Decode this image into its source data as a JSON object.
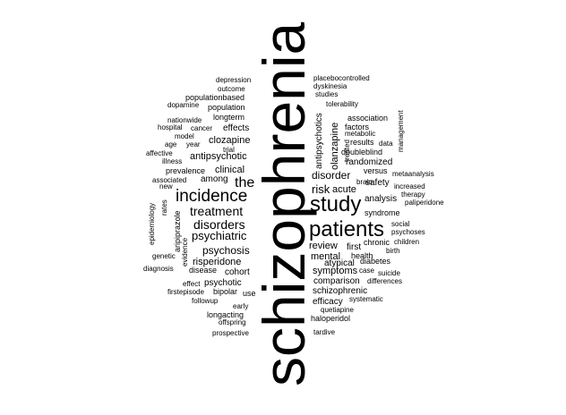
{
  "word_cloud": {
    "text_color": "#000000",
    "background_color": "#ffffff",
    "words": [
      "schizophrenia",
      "patients",
      "study",
      "incidence",
      "disorders",
      "treatment",
      "psychiatric",
      "the",
      "psychosis",
      "risk",
      "disorder",
      "review",
      "antipsychotic",
      "clinical",
      "clozapine",
      "among",
      "risperidone",
      "mental",
      "first",
      "acute",
      "antipsychotics",
      "olanzapine",
      "symptoms",
      "schizophrenic",
      "comparison",
      "efficacy",
      "atypical",
      "randomized",
      "safety",
      "analysis",
      "syndrome",
      "chronic",
      "health",
      "diabetes",
      "cohort",
      "psychotic",
      "bipolar",
      "effects",
      "longterm",
      "population",
      "populationbased",
      "outcome",
      "depression",
      "placebocontrolled",
      "dyskinesia",
      "studies",
      "tolerability",
      "association",
      "factors",
      "metabolic",
      "results",
      "data",
      "management",
      "versus",
      "brain",
      "treated",
      "doubleblind",
      "metaanalysis",
      "increased",
      "therapy",
      "paliperidone",
      "social",
      "psychoses",
      "children",
      "birth",
      "suicide",
      "differences",
      "systematic",
      "quetiapine",
      "haloperidol",
      "tardive",
      "case",
      "dopamine",
      "nationwide",
      "hospital",
      "cancer",
      "model",
      "age",
      "year",
      "trial",
      "affective",
      "illness",
      "prevalence",
      "associated",
      "new",
      "epidemiology",
      "rates",
      "aripiprazole",
      "evidence",
      "genetic",
      "disease",
      "diagnosis",
      "effect",
      "firstepisode",
      "use",
      "followup",
      "early",
      "longacting",
      "offspring",
      "prospective"
    ]
  }
}
